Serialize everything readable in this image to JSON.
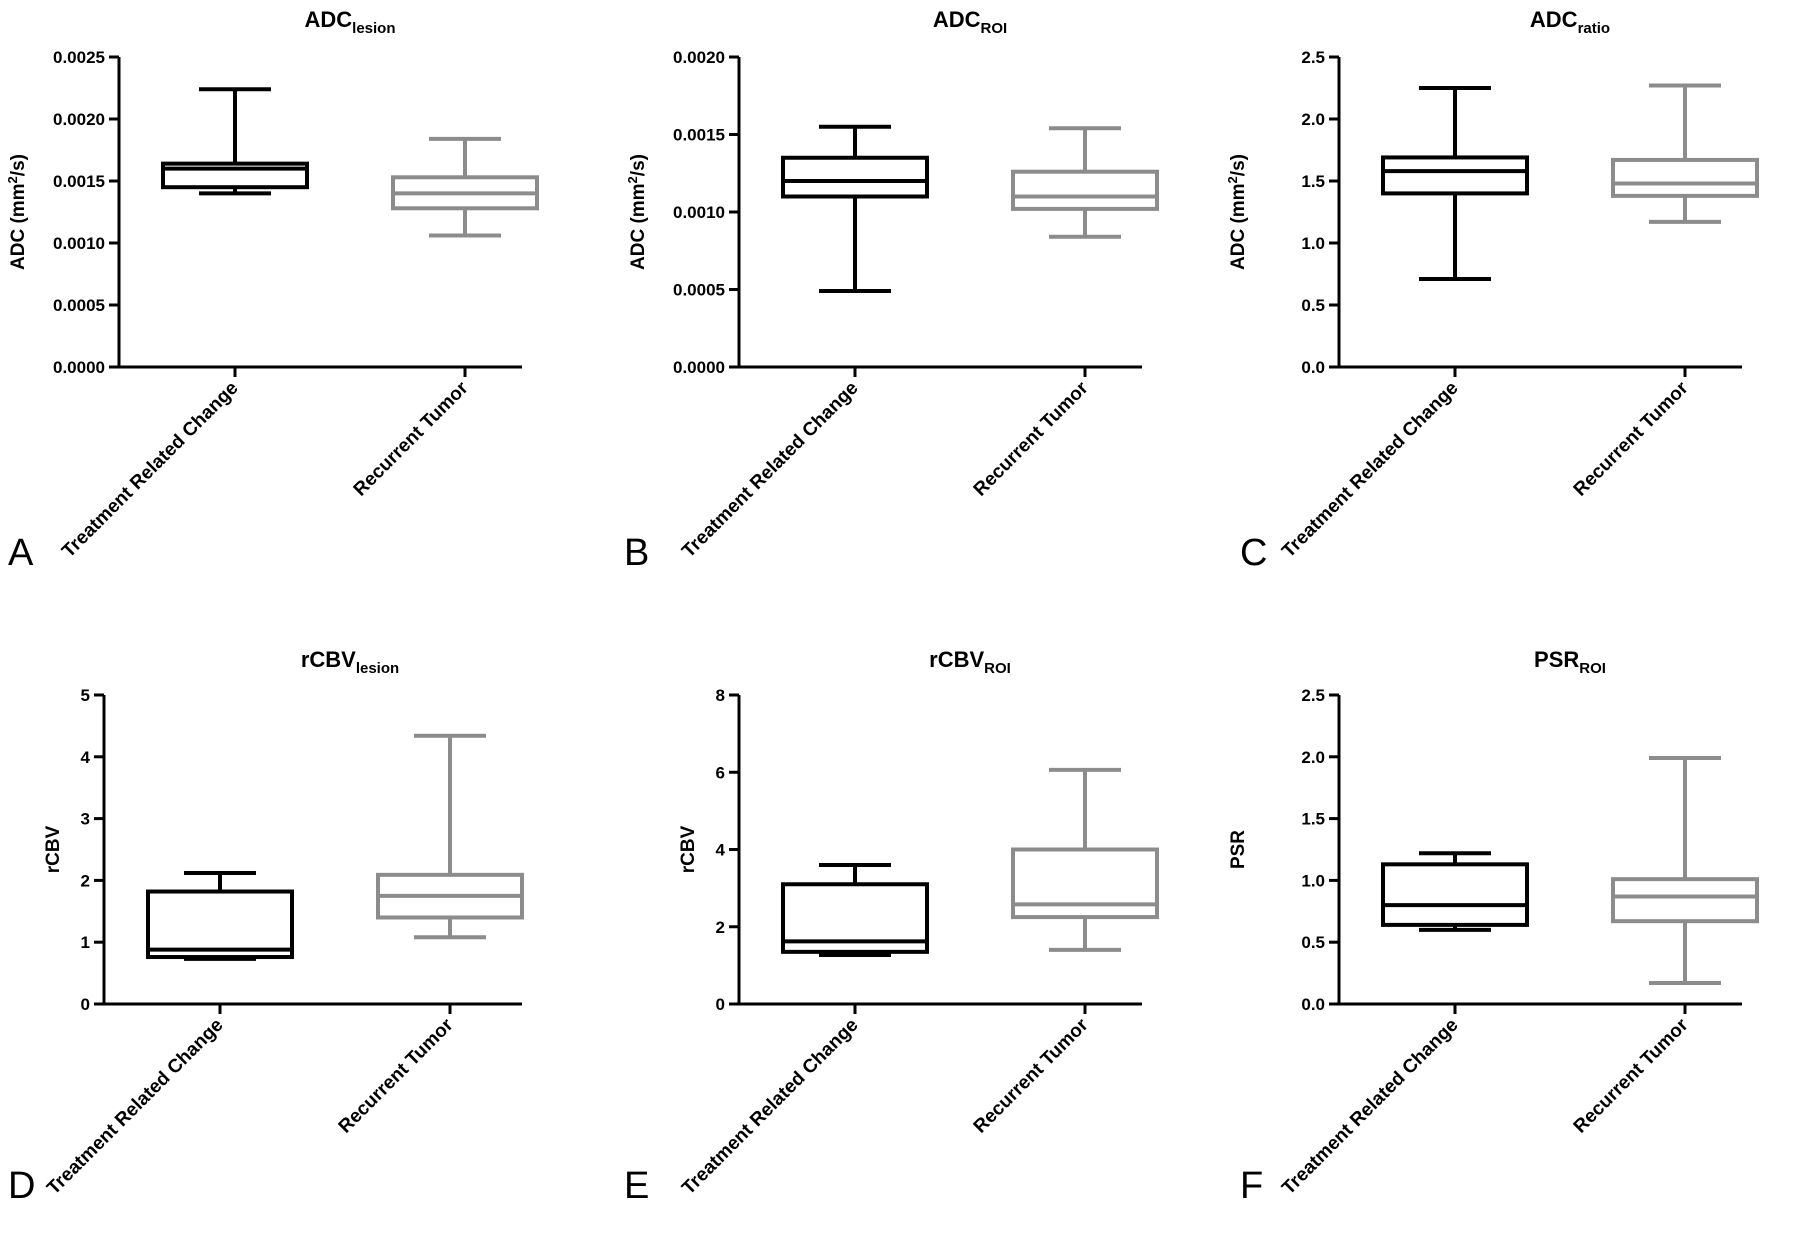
{
  "colors": {
    "treatment": "#000000",
    "recurrent": "#8c8c8c"
  },
  "chart_data": [
    {
      "type": "box",
      "panel_letter": "A",
      "title": {
        "main": "ADC",
        "sub": "lesion"
      },
      "ylabel": {
        "pre": "ADC (mm",
        "sup": "2",
        "post": "/s)"
      },
      "ylim": [
        0,
        0.0025
      ],
      "ticks": [
        "0.0000",
        "0.0005",
        "0.0010",
        "0.0015",
        "0.0020",
        "0.0025"
      ],
      "categories": [
        "Treatment Related Change",
        "Recurrent Tumor"
      ],
      "boxes": [
        {
          "min": 0.0014,
          "q1": 0.00145,
          "median": 0.0016,
          "q3": 0.00164,
          "max": 0.00224
        },
        {
          "min": 0.00106,
          "q1": 0.00128,
          "median": 0.0014,
          "q3": 0.00153,
          "max": 0.00184
        }
      ]
    },
    {
      "type": "box",
      "panel_letter": "B",
      "title": {
        "main": "ADC",
        "sub": "ROI"
      },
      "ylabel": {
        "pre": "ADC (mm",
        "sup": "2",
        "post": "/s)"
      },
      "ylim": [
        0,
        0.002
      ],
      "ticks": [
        "0.0000",
        "0.0005",
        "0.0010",
        "0.0015",
        "0.0020"
      ],
      "categories": [
        "Treatment Related Change",
        "Recurrent Tumor"
      ],
      "boxes": [
        {
          "min": 0.00049,
          "q1": 0.0011,
          "median": 0.0012,
          "q3": 0.00135,
          "max": 0.00155
        },
        {
          "min": 0.00084,
          "q1": 0.00102,
          "median": 0.0011,
          "q3": 0.00126,
          "max": 0.00154
        }
      ]
    },
    {
      "type": "box",
      "panel_letter": "C",
      "title": {
        "main": "ADC",
        "sub": "ratio"
      },
      "ylabel": {
        "pre": "ADC (mm",
        "sup": "2",
        "post": "/s)"
      },
      "ylim": [
        0,
        2.5
      ],
      "ticks": [
        "0.0",
        "0.5",
        "1.0",
        "1.5",
        "2.0",
        "2.5"
      ],
      "categories": [
        "Treatment Related Change",
        "Recurrent Tumor"
      ],
      "boxes": [
        {
          "min": 0.71,
          "q1": 1.4,
          "median": 1.58,
          "q3": 1.69,
          "max": 2.25
        },
        {
          "min": 1.17,
          "q1": 1.38,
          "median": 1.48,
          "q3": 1.67,
          "max": 2.27
        }
      ]
    },
    {
      "type": "box",
      "panel_letter": "D",
      "title": {
        "main": "rCBV",
        "sub": "lesion"
      },
      "ylabel": {
        "pre": "rCBV",
        "sup": "",
        "post": ""
      },
      "ylim": [
        0,
        5
      ],
      "ticks": [
        "0",
        "1",
        "2",
        "3",
        "4",
        "5"
      ],
      "categories": [
        "Treatment Related Change",
        "Recurrent Tumor"
      ],
      "boxes": [
        {
          "min": 0.73,
          "q1": 0.76,
          "median": 0.88,
          "q3": 1.82,
          "max": 2.12
        },
        {
          "min": 1.08,
          "q1": 1.4,
          "median": 1.75,
          "q3": 2.09,
          "max": 4.34
        }
      ]
    },
    {
      "type": "box",
      "panel_letter": "E",
      "title": {
        "main": "rCBV",
        "sub": "ROI"
      },
      "ylabel": {
        "pre": "rCBV",
        "sup": "",
        "post": ""
      },
      "ylim": [
        0,
        8
      ],
      "ticks": [
        "0",
        "2",
        "4",
        "6",
        "8"
      ],
      "categories": [
        "Treatment Related Change",
        "Recurrent Tumor"
      ],
      "boxes": [
        {
          "min": 1.27,
          "q1": 1.35,
          "median": 1.62,
          "q3": 3.1,
          "max": 3.6
        },
        {
          "min": 1.4,
          "q1": 2.25,
          "median": 2.58,
          "q3": 4.0,
          "max": 6.06
        }
      ]
    },
    {
      "type": "box",
      "panel_letter": "F",
      "title": {
        "main": "PSR",
        "sub": "ROI"
      },
      "ylabel": {
        "pre": "PSR",
        "sup": "",
        "post": ""
      },
      "ylim": [
        0,
        2.5
      ],
      "ticks": [
        "0.0",
        "0.5",
        "1.0",
        "1.5",
        "2.0",
        "2.5"
      ],
      "categories": [
        "Treatment Related Change",
        "Recurrent Tumor"
      ],
      "boxes": [
        {
          "min": 0.6,
          "q1": 0.64,
          "median": 0.8,
          "q3": 1.13,
          "max": 1.22
        },
        {
          "min": 0.17,
          "q1": 0.67,
          "median": 0.87,
          "q3": 1.01,
          "max": 1.99
        }
      ]
    }
  ]
}
